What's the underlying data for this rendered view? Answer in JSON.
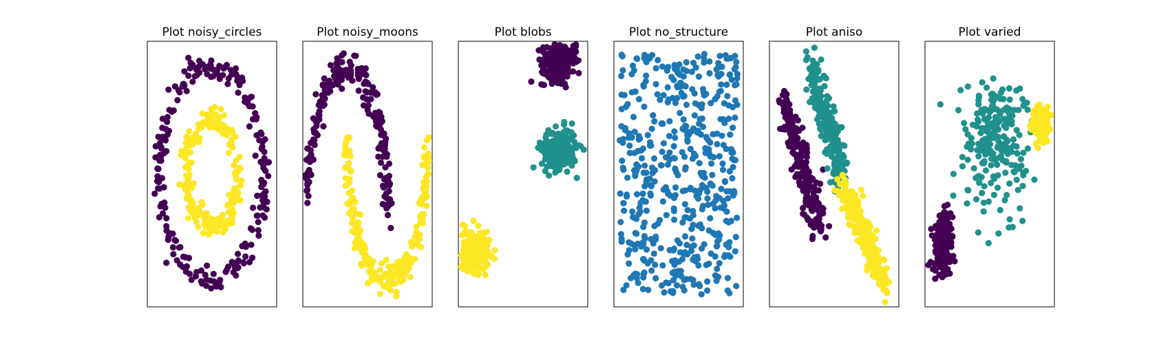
{
  "colors": {
    "purple": "#440154",
    "teal": "#21918c",
    "yellow": "#fde725",
    "blue": "#1f77b4"
  },
  "chart_data": [
    {
      "type": "scatter",
      "title": "Plot noisy_circles",
      "xlim": [
        -1.25,
        1.25
      ],
      "ylim": [
        -1.25,
        1.25
      ],
      "grid": false,
      "clusters": [
        {
          "shape": "ring",
          "cx": 0,
          "cy": 0,
          "r": 1.0,
          "n": 230,
          "spread": 0.055,
          "color": "purple"
        },
        {
          "shape": "ring",
          "cx": 0,
          "cy": 0,
          "r": 0.5,
          "n": 230,
          "spread": 0.055,
          "color": "yellow"
        }
      ]
    },
    {
      "type": "scatter",
      "title": "Plot noisy_moons",
      "xlim": [
        -1.1,
        2.1
      ],
      "ylim": [
        -0.7,
        1.2
      ],
      "grid": false,
      "clusters": [
        {
          "shape": "arc-upper",
          "cx": 0,
          "cy": 0,
          "r": 1.0,
          "n": 230,
          "spread": 0.055,
          "color": "purple"
        },
        {
          "shape": "arc-lower",
          "cx": 1.0,
          "cy": 0.5,
          "r": 1.0,
          "n": 230,
          "spread": 0.055,
          "color": "yellow"
        }
      ]
    },
    {
      "type": "scatter",
      "title": "Plot blobs",
      "xlim": [
        -11.5,
        -2.5
      ],
      "ylim": [
        -11,
        10
      ],
      "grid": false,
      "clusters": [
        {
          "shape": "blob",
          "cx": -4.5,
          "cy": 8.5,
          "sx": 0.6,
          "sy": 0.8,
          "n": 230,
          "color": "purple"
        },
        {
          "shape": "blob",
          "cx": -4.5,
          "cy": 1.5,
          "sx": 0.6,
          "sy": 0.8,
          "n": 230,
          "color": "teal"
        },
        {
          "shape": "blob",
          "cx": -10.5,
          "cy": -6.5,
          "sx": 0.6,
          "sy": 0.8,
          "n": 230,
          "color": "yellow"
        }
      ]
    },
    {
      "type": "scatter",
      "title": "Plot no_structure",
      "xlim": [
        -0.05,
        1.05
      ],
      "ylim": [
        -0.05,
        1.05
      ],
      "grid": false,
      "clusters": [
        {
          "shape": "uniform",
          "x0": 0,
          "x1": 1,
          "y0": 0,
          "y1": 1,
          "n": 500,
          "color": "blue"
        }
      ]
    },
    {
      "type": "scatter",
      "title": "Plot aniso",
      "xlim": [
        -1.3,
        3.3
      ],
      "ylim": [
        -3.3,
        3.3
      ],
      "grid": false,
      "clusters": [
        {
          "shape": "line",
          "x0": -0.8,
          "y0": 1.8,
          "x1": 0.5,
          "y1": -1.4,
          "n": 230,
          "spread": 0.16,
          "color": "purple"
        },
        {
          "shape": "line",
          "x0": 0.1,
          "y0": 2.9,
          "x1": 1.3,
          "y1": -0.2,
          "n": 230,
          "spread": 0.16,
          "color": "teal"
        },
        {
          "shape": "line",
          "x0": 1.3,
          "y0": -0.2,
          "x1": 2.8,
          "y1": -2.8,
          "n": 230,
          "spread": 0.16,
          "color": "yellow"
        }
      ]
    },
    {
      "type": "scatter",
      "title": "Plot varied",
      "xlim": [
        -8,
        6
      ],
      "ylim": [
        -12,
        8
      ],
      "grid": false,
      "clusters": [
        {
          "shape": "blob",
          "cx": -0.5,
          "cy": 0.5,
          "sx": 1.7,
          "sy": 2.6,
          "n": 230,
          "color": "teal"
        },
        {
          "shape": "blob",
          "cx": 4.6,
          "cy": 1.8,
          "sx": 0.35,
          "sy": 0.55,
          "n": 230,
          "color": "yellow"
        },
        {
          "shape": "blob",
          "cx": -6.0,
          "cy": -7.2,
          "sx": 0.5,
          "sy": 1.1,
          "n": 230,
          "color": "purple"
        }
      ]
    }
  ]
}
